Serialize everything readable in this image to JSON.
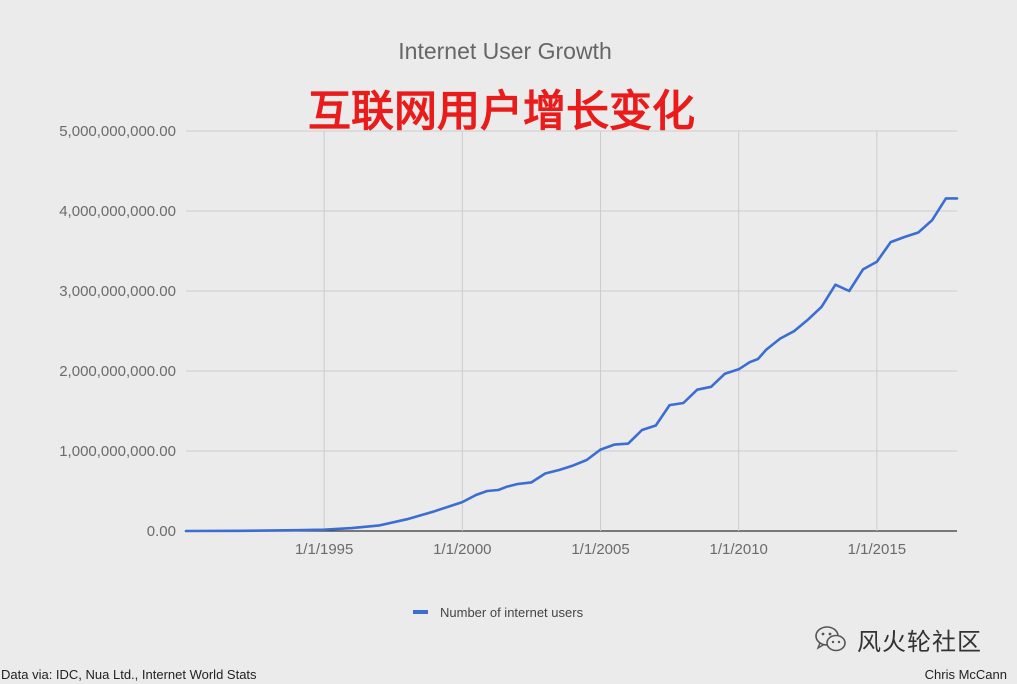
{
  "overlay_title": "互联网用户增长变化",
  "footer": {
    "source": "Data via: IDC, Nua Ltd., Internet World Stats",
    "author": "Chris McCann"
  },
  "watermark": {
    "text": "风火轮社区",
    "logo_icon": "wechat-icon"
  },
  "colors": {
    "line": "#3c6ed2",
    "title_overlay": "#e91b1b",
    "background": "#ebebeb",
    "gridline": "#cccccc"
  },
  "chart_data": {
    "type": "line",
    "title": "Internet User Growth",
    "xlabel": "",
    "ylabel": "",
    "grid": true,
    "legend_position": "bottom",
    "xlim": [
      1990.0,
      2017.9
    ],
    "ylim": [
      0,
      5000000000
    ],
    "x_ticks": [
      {
        "value": 1995,
        "label": "1/1/1995"
      },
      {
        "value": 2000,
        "label": "1/1/2000"
      },
      {
        "value": 2005,
        "label": "1/1/2005"
      },
      {
        "value": 2010,
        "label": "1/1/2010"
      },
      {
        "value": 2015,
        "label": "1/1/2015"
      }
    ],
    "y_ticks": [
      {
        "value": 0,
        "label": "0.00"
      },
      {
        "value": 1000000000,
        "label": "1,000,000,000.00"
      },
      {
        "value": 2000000000,
        "label": "2,000,000,000.00"
      },
      {
        "value": 3000000000,
        "label": "3,000,000,000.00"
      },
      {
        "value": 4000000000,
        "label": "4,000,000,000.00"
      },
      {
        "value": 5000000000,
        "label": "5,000,000,000.00"
      }
    ],
    "series": [
      {
        "name": "Number of internet users",
        "color": "#3c6ed2",
        "x": [
          1990.0,
          1992.0,
          1994.0,
          1995.0,
          1996.0,
          1997.0,
          1998.0,
          1999.0,
          2000.0,
          2000.5,
          2000.9,
          2001.3,
          2001.6,
          2002.0,
          2002.5,
          2003.0,
          2003.5,
          2004.0,
          2004.5,
          2005.0,
          2005.5,
          2005.9,
          2006.0,
          2006.5,
          2007.0,
          2007.5,
          2008.0,
          2008.5,
          2009.0,
          2009.5,
          2010.0,
          2010.4,
          2010.7,
          2011.0,
          2011.5,
          2012.0,
          2012.5,
          2013.0,
          2013.5,
          2014.0,
          2014.5,
          2015.0,
          2015.5,
          2016.0,
          2016.5,
          2017.0,
          2017.5,
          2017.9
        ],
        "y": [
          0,
          2000000,
          10000000,
          16000000,
          36000000,
          70000000,
          147000000,
          248000000,
          361000000,
          451000000,
          500000000,
          513000000,
          553000000,
          587000000,
          608000000,
          719000000,
          763000000,
          817000000,
          888000000,
          1018000000,
          1080000000,
          1090000000,
          1093000000,
          1262000000,
          1319000000,
          1574000000,
          1600000000,
          1766000000,
          1802000000,
          1966000000,
          2021000000,
          2110000000,
          2150000000,
          2267000000,
          2405000000,
          2497000000,
          2640000000,
          2802000000,
          3079000000,
          3000000000,
          3270000000,
          3366000000,
          3611000000,
          3675000000,
          3731000000,
          3885000000,
          4157000000,
          4157000000
        ]
      }
    ]
  }
}
